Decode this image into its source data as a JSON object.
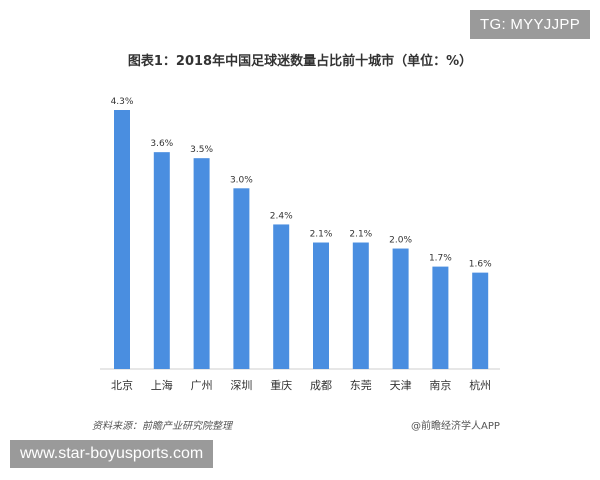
{
  "top_tag": "TG: MYYJJPP",
  "bottom_tag": "www.star-boyusports.com",
  "footer": {
    "source_left": "资料来源：前瞻产业研究院整理",
    "source_right": "@前瞻经济学人APP"
  },
  "colors": {
    "bar": "#4a8ee0",
    "axis": "#cfcfcf",
    "text": "#333333"
  },
  "chart_data": {
    "type": "bar",
    "title": "图表1：2018年中国足球迷数量占比前十城市（单位：%）",
    "categories": [
      "北京",
      "上海",
      "广州",
      "深圳",
      "重庆",
      "成都",
      "东莞",
      "天津",
      "南京",
      "杭州"
    ],
    "values": [
      4.3,
      3.6,
      3.5,
      3.0,
      2.4,
      2.1,
      2.1,
      2.0,
      1.7,
      1.6
    ],
    "value_labels": [
      "4.3%",
      "3.6%",
      "3.5%",
      "3.0%",
      "2.4%",
      "2.1%",
      "2.1%",
      "2.0%",
      "1.7%",
      "1.6%"
    ],
    "ylim": [
      0,
      4.3
    ],
    "grid": false
  }
}
